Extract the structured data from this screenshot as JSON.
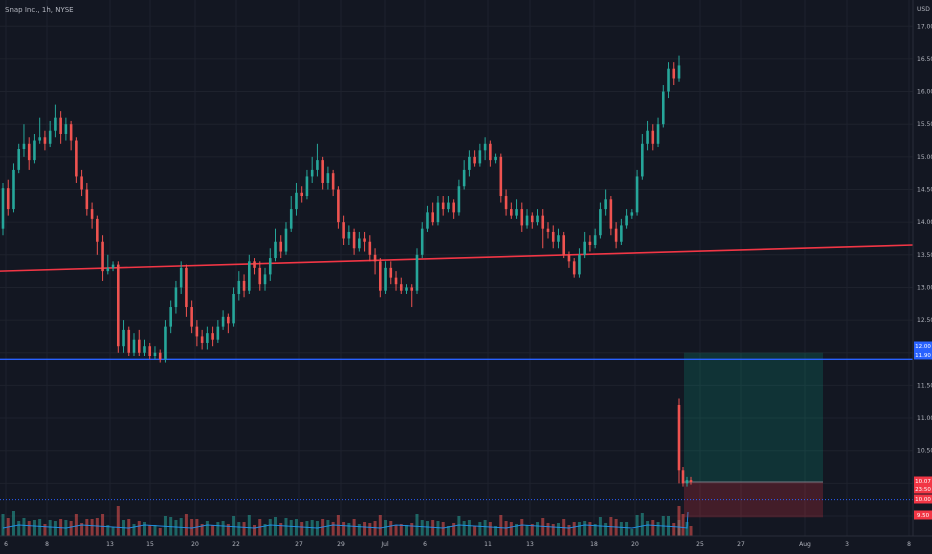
{
  "header": {
    "symbol_line": "Snap Inc., 1h, NYSE"
  },
  "chart_data": {
    "type": "candlestick",
    "title": "Snap Inc., 1h, NYSE",
    "currency": "USD",
    "ylim": [
      9.3,
      17.2
    ],
    "grid": true,
    "y_ticks": [
      "17.00",
      "16.50",
      "16.00",
      "15.50",
      "15.00",
      "14.50",
      "14.00",
      "13.50",
      "13.00",
      "12.50",
      "12.00",
      "11.50",
      "11.00",
      "10.50",
      "10.00",
      "9.50"
    ],
    "x_ticks": [
      "6",
      "8",
      "13",
      "15",
      "20",
      "22",
      "27",
      "29",
      "Jul",
      "6",
      "11",
      "13",
      "18",
      "20",
      "25",
      "27",
      "Aug",
      "3",
      "8"
    ],
    "price_tags": [
      {
        "value": 12.0,
        "label": "12.00",
        "color": "#2962ff"
      },
      {
        "value": 11.9,
        "label": "11.90",
        "color": "#2962ff"
      },
      {
        "value": 10.07,
        "label": "10.07",
        "color": "#f23645"
      },
      {
        "value": 9.9,
        "label": "23:50",
        "color": "#f23645"
      },
      {
        "value": 9.8,
        "label": "10.00",
        "color": "#f23645"
      },
      {
        "value": 9.5,
        "label": "9.50",
        "color": "#f23645"
      }
    ],
    "trendline": {
      "start": 13.25,
      "end": 13.65,
      "color": "#f23645"
    },
    "support_level": {
      "value": 11.9,
      "color": "#2962ff"
    },
    "position_box": {
      "entry": 10.02,
      "target": 12.0,
      "stop": 9.48
    },
    "dotted_level": {
      "value": 9.75
    },
    "candles": [
      [
        13.9,
        14.52,
        14.6,
        13.8
      ],
      [
        14.52,
        14.2,
        14.65,
        14.1
      ],
      [
        14.2,
        14.8,
        14.9,
        14.15
      ],
      [
        14.8,
        15.12,
        15.2,
        14.75
      ],
      [
        15.12,
        15.2,
        15.5,
        15.0
      ],
      [
        15.2,
        14.95,
        15.3,
        14.8
      ],
      [
        14.95,
        15.25,
        15.35,
        14.9
      ],
      [
        15.25,
        15.3,
        15.6,
        15.2
      ],
      [
        15.3,
        15.2,
        15.4,
        15.1
      ],
      [
        15.2,
        15.4,
        15.55,
        15.15
      ],
      [
        15.4,
        15.6,
        15.8,
        15.3
      ],
      [
        15.6,
        15.35,
        15.7,
        15.2
      ],
      [
        15.35,
        15.5,
        15.6,
        15.25
      ],
      [
        15.5,
        15.25,
        15.55,
        15.1
      ],
      [
        15.25,
        14.7,
        15.3,
        14.6
      ],
      [
        14.7,
        14.5,
        14.8,
        14.4
      ],
      [
        14.5,
        14.2,
        14.6,
        14.1
      ],
      [
        14.2,
        14.05,
        14.3,
        13.9
      ],
      [
        14.05,
        13.7,
        14.1,
        13.5
      ],
      [
        13.7,
        13.25,
        13.8,
        13.1
      ],
      [
        13.25,
        13.3,
        13.5,
        13.2
      ],
      [
        13.3,
        13.35,
        13.4,
        13.25
      ],
      [
        13.35,
        12.1,
        13.4,
        12.0
      ],
      [
        12.1,
        12.35,
        12.5,
        12.0
      ],
      [
        12.35,
        12.0,
        12.4,
        11.95
      ],
      [
        12.0,
        12.2,
        12.3,
        11.95
      ],
      [
        12.2,
        12.0,
        12.35,
        11.95
      ],
      [
        12.0,
        12.1,
        12.2,
        11.95
      ],
      [
        12.1,
        11.95,
        12.15,
        11.9
      ],
      [
        11.95,
        12.0,
        12.1,
        11.9
      ],
      [
        12.0,
        11.9,
        12.05,
        11.85
      ],
      [
        11.9,
        12.4,
        12.5,
        11.85
      ],
      [
        12.4,
        12.7,
        12.8,
        12.3
      ],
      [
        12.7,
        13.0,
        13.1,
        12.6
      ],
      [
        13.0,
        13.3,
        13.4,
        12.9
      ],
      [
        13.3,
        12.7,
        13.35,
        12.55
      ],
      [
        12.7,
        12.4,
        12.8,
        12.3
      ],
      [
        12.4,
        12.25,
        12.5,
        12.1
      ],
      [
        12.25,
        12.15,
        12.35,
        12.05
      ],
      [
        12.15,
        12.3,
        12.4,
        12.05
      ],
      [
        12.3,
        12.2,
        12.4,
        12.1
      ],
      [
        12.2,
        12.4,
        12.5,
        12.15
      ],
      [
        12.4,
        12.55,
        12.65,
        12.35
      ],
      [
        12.55,
        12.45,
        12.6,
        12.3
      ],
      [
        12.45,
        12.9,
        13.0,
        12.4
      ],
      [
        12.9,
        13.1,
        13.25,
        12.8
      ],
      [
        13.1,
        12.95,
        13.2,
        12.85
      ],
      [
        12.95,
        13.4,
        13.5,
        12.9
      ],
      [
        13.4,
        13.3,
        13.45,
        13.2
      ],
      [
        13.3,
        13.05,
        13.4,
        12.95
      ],
      [
        13.05,
        13.2,
        13.3,
        12.95
      ],
      [
        13.2,
        13.45,
        13.6,
        13.1
      ],
      [
        13.45,
        13.7,
        13.9,
        13.4
      ],
      [
        13.7,
        13.55,
        13.8,
        13.45
      ],
      [
        13.55,
        13.9,
        14.0,
        13.5
      ],
      [
        13.9,
        14.2,
        14.4,
        13.85
      ],
      [
        14.2,
        14.45,
        14.6,
        14.1
      ],
      [
        14.45,
        14.4,
        14.55,
        14.3
      ],
      [
        14.4,
        14.7,
        14.8,
        14.35
      ],
      [
        14.7,
        14.8,
        15.0,
        14.6
      ],
      [
        14.8,
        14.95,
        15.2,
        14.7
      ],
      [
        14.95,
        14.6,
        15.0,
        14.5
      ],
      [
        14.6,
        14.75,
        14.85,
        14.5
      ],
      [
        14.75,
        14.5,
        14.8,
        14.4
      ],
      [
        14.5,
        14.0,
        14.55,
        13.9
      ],
      [
        14.0,
        13.75,
        14.1,
        13.65
      ],
      [
        13.75,
        13.85,
        13.95,
        13.65
      ],
      [
        13.85,
        13.6,
        13.9,
        13.5
      ],
      [
        13.6,
        13.75,
        13.85,
        13.55
      ],
      [
        13.75,
        13.7,
        13.85,
        13.55
      ],
      [
        13.7,
        13.5,
        13.8,
        13.4
      ],
      [
        13.5,
        13.4,
        13.6,
        13.2
      ],
      [
        13.4,
        12.95,
        13.45,
        12.85
      ],
      [
        12.95,
        13.3,
        13.4,
        12.9
      ],
      [
        13.3,
        13.15,
        13.4,
        13.05
      ],
      [
        13.15,
        13.05,
        13.25,
        12.95
      ],
      [
        13.05,
        12.95,
        13.15,
        12.9
      ],
      [
        12.95,
        13.0,
        13.05,
        12.9
      ],
      [
        13.0,
        12.95,
        13.05,
        12.7
      ],
      [
        12.95,
        13.5,
        13.6,
        12.9
      ],
      [
        13.5,
        13.9,
        14.0,
        13.45
      ],
      [
        13.9,
        14.15,
        14.25,
        13.85
      ],
      [
        14.15,
        14.0,
        14.3,
        13.95
      ],
      [
        14.0,
        14.3,
        14.4,
        13.95
      ],
      [
        14.3,
        14.2,
        14.4,
        14.1
      ],
      [
        14.2,
        14.3,
        14.4,
        14.15
      ],
      [
        14.3,
        14.15,
        14.35,
        14.05
      ],
      [
        14.15,
        14.55,
        14.65,
        14.1
      ],
      [
        14.55,
        14.8,
        14.95,
        14.5
      ],
      [
        14.8,
        15.0,
        15.1,
        14.7
      ],
      [
        15.0,
        14.9,
        15.1,
        14.85
      ],
      [
        14.9,
        15.1,
        15.2,
        14.85
      ],
      [
        15.1,
        15.2,
        15.3,
        14.95
      ],
      [
        15.2,
        14.95,
        15.25,
        14.85
      ],
      [
        14.95,
        15.0,
        15.05,
        14.9
      ],
      [
        15.0,
        14.4,
        15.05,
        14.3
      ],
      [
        14.4,
        14.2,
        14.5,
        14.1
      ],
      [
        14.2,
        14.1,
        14.3,
        14.05
      ],
      [
        14.1,
        14.2,
        14.35,
        14.05
      ],
      [
        14.2,
        13.95,
        14.3,
        13.85
      ],
      [
        13.95,
        14.1,
        14.2,
        13.9
      ],
      [
        14.1,
        14.0,
        14.15,
        13.9
      ],
      [
        14.0,
        14.1,
        14.2,
        13.95
      ],
      [
        14.1,
        13.9,
        14.2,
        13.6
      ],
      [
        13.9,
        13.85,
        14.0,
        13.75
      ],
      [
        13.85,
        13.7,
        13.95,
        13.6
      ],
      [
        13.7,
        13.8,
        13.9,
        13.6
      ],
      [
        13.8,
        13.5,
        13.85,
        13.45
      ],
      [
        13.5,
        13.4,
        13.55,
        13.3
      ],
      [
        13.4,
        13.2,
        13.45,
        13.15
      ],
      [
        13.2,
        13.5,
        13.6,
        13.15
      ],
      [
        13.5,
        13.7,
        13.85,
        13.45
      ],
      [
        13.7,
        13.65,
        13.8,
        13.55
      ],
      [
        13.65,
        13.8,
        13.9,
        13.6
      ],
      [
        13.8,
        14.2,
        14.3,
        13.75
      ],
      [
        14.2,
        14.35,
        14.5,
        14.1
      ],
      [
        14.35,
        13.9,
        14.4,
        13.8
      ],
      [
        13.9,
        13.7,
        14.0,
        13.6
      ],
      [
        13.7,
        13.95,
        14.05,
        13.65
      ],
      [
        13.95,
        14.1,
        14.2,
        13.9
      ],
      [
        14.1,
        14.15,
        14.2,
        14.05
      ],
      [
        14.15,
        14.7,
        14.8,
        14.1
      ],
      [
        14.7,
        15.2,
        15.35,
        14.65
      ],
      [
        15.2,
        15.4,
        15.55,
        15.1
      ],
      [
        15.4,
        15.2,
        15.5,
        15.1
      ],
      [
        15.2,
        15.5,
        15.6,
        15.15
      ],
      [
        15.5,
        16.0,
        16.1,
        15.45
      ],
      [
        16.0,
        16.35,
        16.45,
        15.9
      ],
      [
        16.35,
        16.2,
        16.45,
        16.1
      ],
      [
        16.2,
        16.4,
        16.55,
        16.15
      ],
      [
        11.2,
        10.2,
        11.3,
        10.0
      ],
      [
        10.2,
        10.0,
        10.25,
        9.95
      ],
      [
        10.0,
        10.05,
        10.1,
        9.95
      ],
      [
        10.05,
        10.02,
        10.1,
        9.98
      ]
    ]
  }
}
